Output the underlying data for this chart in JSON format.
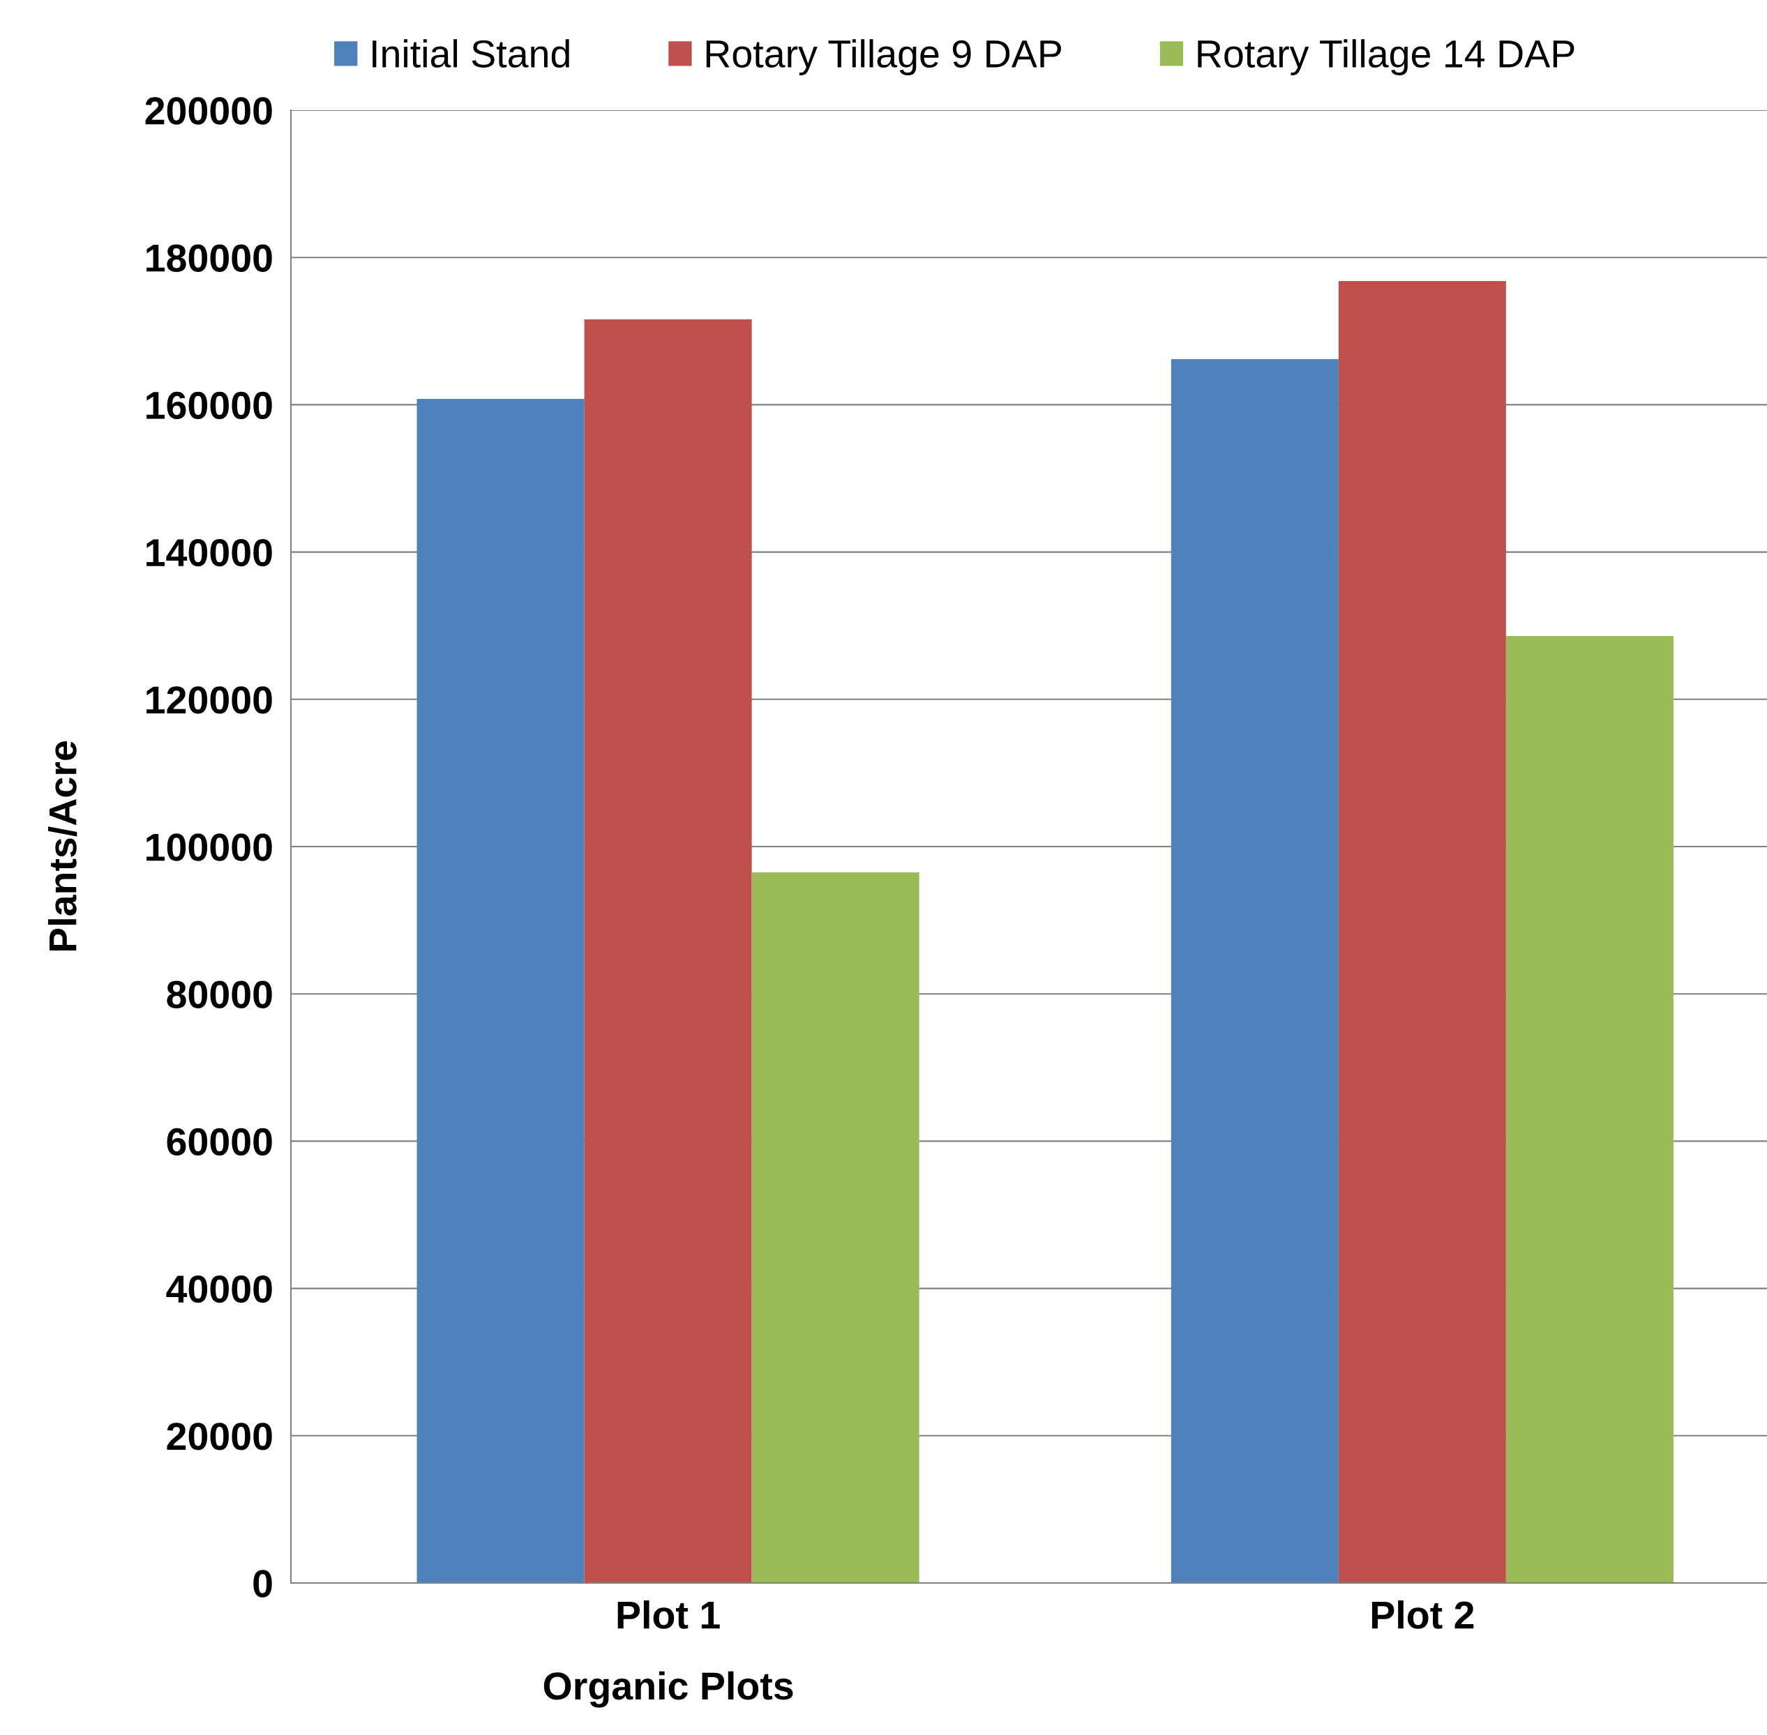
{
  "chart_data": {
    "type": "bar",
    "xlabel": "Organic Plots",
    "ylabel": "Plants/Acre",
    "categories": [
      "Plot 1",
      "Plot 2"
    ],
    "series": [
      {
        "name": "Initial Stand",
        "color": "#4f81bd",
        "values": [
          160800,
          166200
        ]
      },
      {
        "name": "Rotary Tillage 9 DAP",
        "color": "#c0504d",
        "values": [
          171600,
          176800
        ]
      },
      {
        "name": "Rotary Tillage 14 DAP",
        "color": "#9bbb59",
        "values": [
          96500,
          128600
        ]
      }
    ],
    "ylim": [
      0,
      200000
    ],
    "yticks": [
      0,
      20000,
      40000,
      60000,
      80000,
      100000,
      120000,
      140000,
      160000,
      180000,
      200000
    ],
    "grid": "y",
    "legend": "top"
  }
}
